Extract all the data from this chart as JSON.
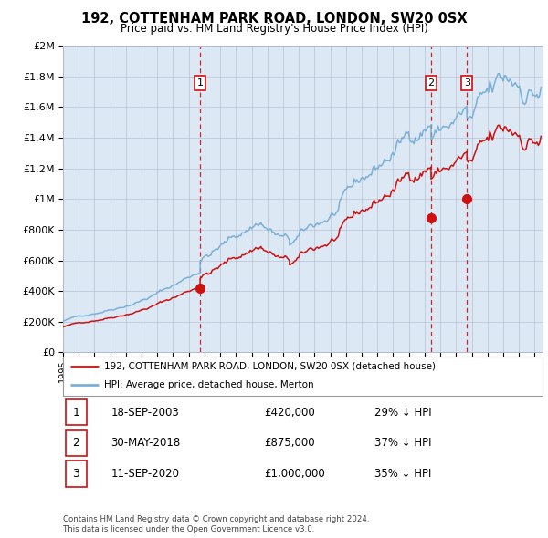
{
  "title": "192, COTTENHAM PARK ROAD, LONDON, SW20 0SX",
  "subtitle": "Price paid vs. HM Land Registry's House Price Index (HPI)",
  "background_color": "#ffffff",
  "plot_bg_color": "#dde8f5",
  "hpi_color": "#7ab0d8",
  "price_color": "#cc1111",
  "marker_color": "#cc1111",
  "vline_color": "#cc1111",
  "grid_color": "#b0b8cc",
  "transactions": [
    {
      "date": 2003.72,
      "price": 420000,
      "label": "1",
      "date_str": "18-SEP-2003",
      "pct": "29% ↓ HPI"
    },
    {
      "date": 2018.41,
      "price": 875000,
      "label": "2",
      "date_str": "30-MAY-2018",
      "pct": "37% ↓ HPI"
    },
    {
      "date": 2020.69,
      "price": 1000000,
      "label": "3",
      "date_str": "11-SEP-2020",
      "pct": "35% ↓ HPI"
    }
  ],
  "legend_line1": "192, COTTENHAM PARK ROAD, LONDON, SW20 0SX (detached house)",
  "legend_line2": "HPI: Average price, detached house, Merton",
  "footer": "Contains HM Land Registry data © Crown copyright and database right 2024.\nThis data is licensed under the Open Government Licence v3.0.",
  "ylim": [
    0,
    2000000
  ],
  "xlim_start": 1995.0,
  "xlim_end": 2025.5,
  "yticks": [
    0,
    200000,
    400000,
    600000,
    800000,
    1000000,
    1200000,
    1400000,
    1600000,
    1800000,
    2000000
  ],
  "xticks": [
    1995,
    1996,
    1997,
    1998,
    1999,
    2000,
    2001,
    2002,
    2003,
    2004,
    2005,
    2006,
    2007,
    2008,
    2009,
    2010,
    2011,
    2012,
    2013,
    2014,
    2015,
    2016,
    2017,
    2018,
    2019,
    2020,
    2021,
    2022,
    2023,
    2024,
    2025
  ]
}
